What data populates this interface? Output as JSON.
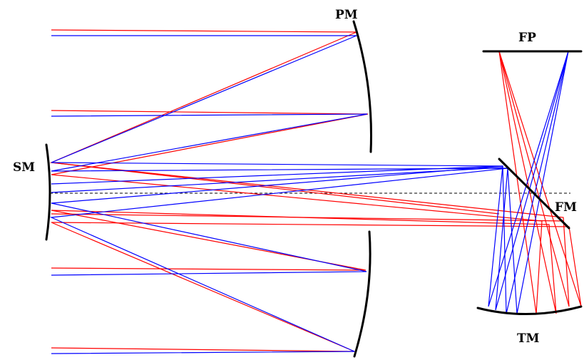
{
  "diagram": {
    "labels": {
      "primary_mirror": "PM",
      "secondary_mirror": "SM",
      "focal_plane": "FP",
      "fold_mirror": "FM",
      "tertiary_mirror": "TM"
    },
    "colors": {
      "ray_field_a": "#ff0000",
      "ray_field_b": "#0000ff",
      "mirror": "#000000",
      "optical_axis": "#000000"
    }
  }
}
